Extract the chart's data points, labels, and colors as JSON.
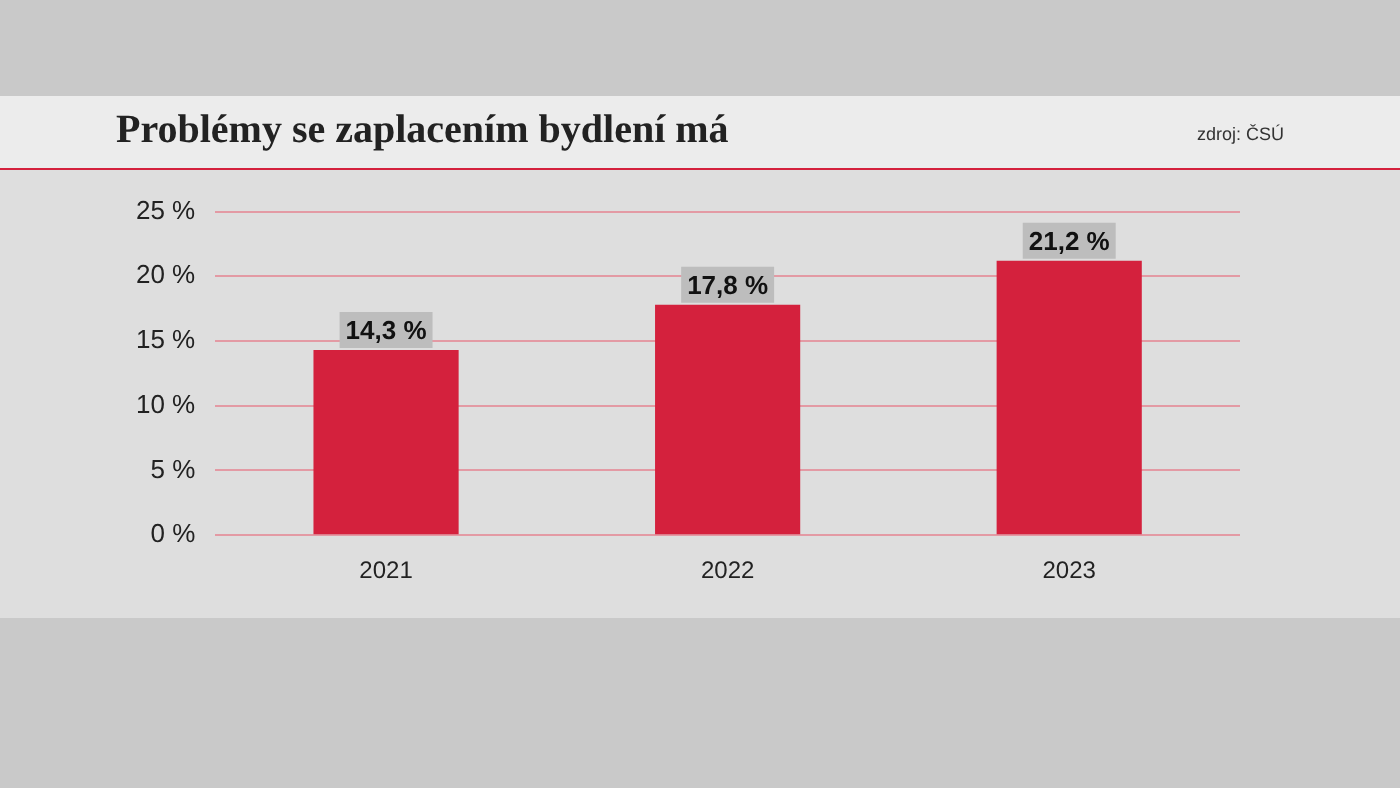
{
  "chart_data": {
    "type": "bar",
    "title": "Problémy se zaplacením bydlení má",
    "annotations": [
      "zdroj: ČSÚ"
    ],
    "categories": [
      "2021",
      "2022",
      "2023"
    ],
    "values": [
      14.3,
      17.8,
      21.2
    ],
    "value_labels": [
      "14,3 %",
      "17,8 %",
      "21,2 %"
    ],
    "color": "#d4213d",
    "ylim": [
      0,
      25
    ],
    "yticks": [
      {
        "value": 0,
        "label": "0 %"
      },
      {
        "value": 5,
        "label": "5 %"
      },
      {
        "value": 10,
        "label": "10 %"
      },
      {
        "value": 15,
        "label": "15 %"
      },
      {
        "value": 20,
        "label": "20 %"
      },
      {
        "value": 25,
        "label": "25 %"
      }
    ],
    "grid": "y",
    "legend": false
  }
}
